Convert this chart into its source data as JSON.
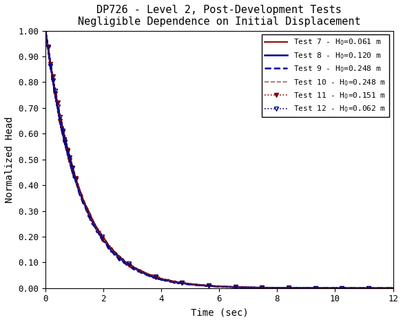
{
  "title_line1": "DP726 - Level 2, Post-Development Tests",
  "title_line2": "Negligible Dependence on Initial Displacement",
  "xlabel": "Time (sec)",
  "ylabel": "Normalized Head",
  "xlim": [
    0,
    12
  ],
  "ylim": [
    0.0,
    1.0
  ],
  "yticks": [
    0.0,
    0.1,
    0.2,
    0.3,
    0.4,
    0.5,
    0.6,
    0.7,
    0.8,
    0.9,
    1.0
  ],
  "xticks": [
    0,
    2,
    4,
    6,
    8,
    10,
    12
  ],
  "background_color": "#ffffff",
  "title_fontsize": 11,
  "axis_label_fontsize": 10,
  "tick_fontsize": 9,
  "legend_fontsize": 8,
  "tests": [
    {
      "label": "Test 7 - H0=0.061 m",
      "color": "#8B0000",
      "linestyle": "-",
      "linewidth": 1.4,
      "marker": null,
      "alpha": 1.0,
      "decay": 0.72,
      "peak_t": 0.3
    },
    {
      "label": "Test 8 - H0=0.120 m",
      "color": "#00008B",
      "linestyle": "-",
      "linewidth": 1.8,
      "marker": null,
      "alpha": 1.0,
      "decay": 0.7,
      "peak_t": 0.32
    },
    {
      "label": "Test 9 - H0=0.248 m",
      "color": "#00008B",
      "linestyle": "--",
      "linewidth": 1.8,
      "marker": null,
      "alpha": 1.0,
      "decay": 0.69,
      "peak_t": 0.33
    },
    {
      "label": "Test 10 - H0=0.248 m",
      "color": "#8B4040",
      "linestyle": "--",
      "linewidth": 1.2,
      "marker": null,
      "alpha": 0.8,
      "decay": 0.71,
      "peak_t": 0.31
    },
    {
      "label": "Test 11 - H0=0.151 m",
      "color": "#8B0000",
      "linestyle": ":",
      "linewidth": 1.2,
      "marker": "v",
      "markersize": 4,
      "markevery": 25,
      "markerfacecolor": "#8B0000",
      "alpha": 1.0,
      "decay": 0.705,
      "peak_t": 0.315
    },
    {
      "label": "Test 12 - H0=0.062 m",
      "color": "#00008B",
      "linestyle": ":",
      "linewidth": 1.2,
      "marker": "v",
      "markersize": 4,
      "markevery": 25,
      "markerfacecolor": "none",
      "alpha": 1.0,
      "decay": 0.715,
      "peak_t": 0.305
    }
  ]
}
